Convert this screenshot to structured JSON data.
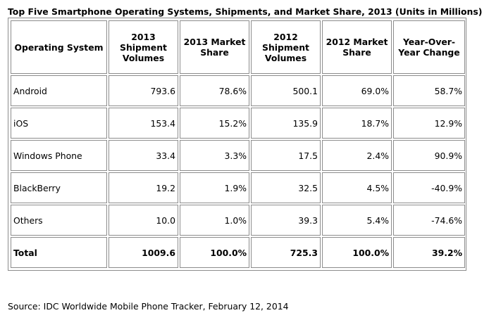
{
  "title": "Top Five Smartphone Operating Systems, Shipments, and Market Share, 2013 (Units in Millions)",
  "columns": [
    "Operating System",
    "2013 Shipment Volumes",
    "2013 Market Share",
    "2012 Shipment Volumes",
    "2012 Market Share",
    "Year-Over-Year Change"
  ],
  "rows": [
    [
      "Android",
      "793.6",
      "78.6%",
      "500.1",
      "69.0%",
      "58.7%"
    ],
    [
      "iOS",
      "153.4",
      "15.2%",
      "135.9",
      "18.7%",
      "12.9%"
    ],
    [
      "Windows Phone",
      "33.4",
      "3.3%",
      "17.5",
      "2.4%",
      "90.9%"
    ],
    [
      "BlackBerry",
      "19.2",
      "1.9%",
      "32.5",
      "4.5%",
      "-40.9%"
    ],
    [
      "Others",
      "10.0",
      "1.0%",
      "39.3",
      "5.4%",
      "-74.6%"
    ]
  ],
  "total": [
    "Total",
    "1009.6",
    "100.0%",
    "725.3",
    "100.0%",
    "39.2%"
  ],
  "source": "Source: IDC Worldwide Mobile Phone Tracker, February 12, 2014"
}
